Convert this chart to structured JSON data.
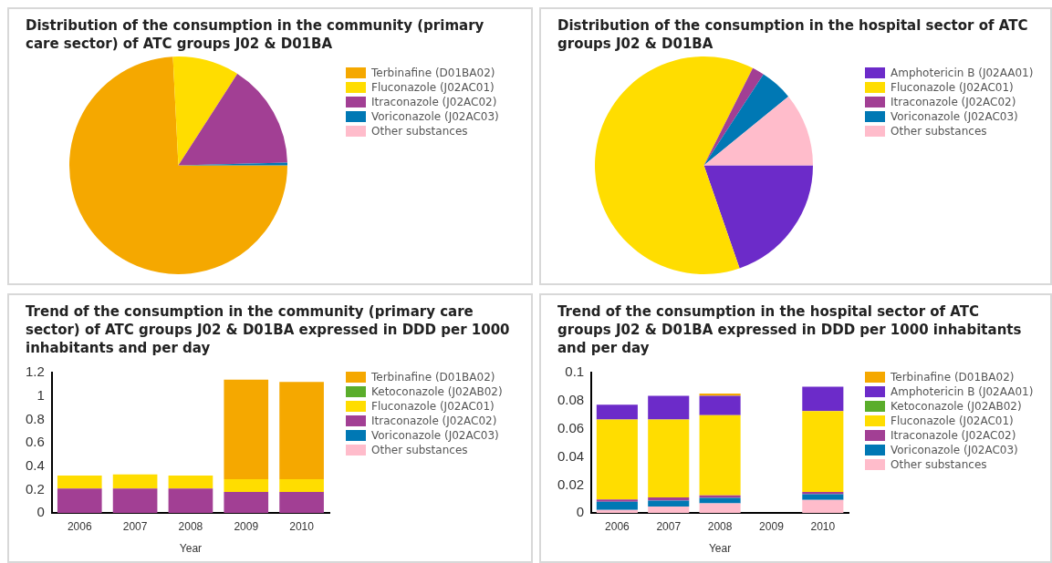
{
  "chart_data": [
    {
      "type": "pie",
      "title": "Distribution of the consumption in the community (primary care sector) of ATC groups J02 & D01BA",
      "categories": [
        "Terbinafine (D01BA02)",
        "Fluconazole (J02AC01)",
        "Itraconazole (J02AC02)",
        "Voriconazole (J02AC03)",
        "Other substances"
      ],
      "values": [
        74.2,
        9.9,
        15.5,
        0.4,
        0
      ],
      "colors": [
        "#f5a800",
        "#ffdd00",
        "#a23f94",
        "#0078b4",
        "#ffbccb"
      ],
      "legend": "right"
    },
    {
      "type": "pie",
      "title": "Distribution of the consumption in the hospital sector of ATC groups J02 & D01BA",
      "categories": [
        "Amphotericin B (J02AA01)",
        "Fluconazole (J02AC01)",
        "Itraconazole (J02AC02)",
        "Voriconazole (J02AC03)",
        "Other substances"
      ],
      "values": [
        19.7,
        62.7,
        1.8,
        4.9,
        10.9
      ],
      "colors": [
        "#6c2bc9",
        "#ffdd00",
        "#a23f94",
        "#0078b4",
        "#ffbccb"
      ],
      "legend": "right"
    },
    {
      "type": "bar",
      "stacked": true,
      "title": "Trend of the consumption in the community (primary care sector) of ATC groups J02 & D01BA expressed in DDD per 1000 inhabitants and per day",
      "xlabel": "Year",
      "categories": [
        "2006",
        "2007",
        "2008",
        "2009",
        "2010"
      ],
      "ylim": [
        0,
        1.2
      ],
      "yticks": [
        0,
        0.2,
        0.4,
        0.6,
        0.8,
        1,
        1.2
      ],
      "grid": false,
      "legend": "right",
      "series": [
        {
          "name": "Other substances",
          "color": "#ffbccb",
          "values": [
            0,
            0,
            0,
            0,
            0
          ]
        },
        {
          "name": "Voriconazole (J02AC03)",
          "color": "#0078b4",
          "values": [
            0,
            0,
            0,
            0,
            0
          ]
        },
        {
          "name": "Itraconazole (J02AC02)",
          "color": "#a23f94",
          "values": [
            0.21,
            0.21,
            0.21,
            0.18,
            0.18
          ]
        },
        {
          "name": "Fluconazole (J02AC01)",
          "color": "#ffdd00",
          "values": [
            0.11,
            0.12,
            0.11,
            0.11,
            0.11
          ]
        },
        {
          "name": "Ketoconazole (J02AB02)",
          "color": "#5aad2b",
          "values": [
            0,
            0,
            0,
            0,
            0
          ]
        },
        {
          "name": "Terbinafine (D01BA02)",
          "color": "#f5a800",
          "values": [
            0,
            0,
            0,
            0.85,
            0.83
          ]
        }
      ]
    },
    {
      "type": "bar",
      "stacked": true,
      "title": "Trend of the consumption in the hospital sector of ATC groups J02 & D01BA expressed in DDD per 1000 inhabitants and per day",
      "xlabel": "Year",
      "categories": [
        "2006",
        "2007",
        "2008",
        "2009",
        "2010"
      ],
      "ylim": [
        0,
        0.1
      ],
      "yticks": [
        0,
        0.02,
        0.04,
        0.06,
        0.08,
        0.1
      ],
      "grid": false,
      "legend": "right",
      "series": [
        {
          "name": "Other substances",
          "color": "#ffbccb",
          "values": [
            0.0023,
            0.0046,
            0.0069,
            null,
            0.0094
          ]
        },
        {
          "name": "Voriconazole (J02AC03)",
          "color": "#0078b4",
          "values": [
            0.0057,
            0.0043,
            0.004,
            null,
            0.004
          ]
        },
        {
          "name": "Itraconazole (J02AC02)",
          "color": "#a23f94",
          "values": [
            0.0017,
            0.0022,
            0.0017,
            null,
            0.0017
          ]
        },
        {
          "name": "Fluconazole (J02AC01)",
          "color": "#ffdd00",
          "values": [
            0.0569,
            0.0555,
            0.0571,
            null,
            0.0575
          ]
        },
        {
          "name": "Ketoconazole (J02AB02)",
          "color": "#5aad2b",
          "values": [
            0,
            0,
            0,
            null,
            0
          ]
        },
        {
          "name": "Amphotericin B (J02AA01)",
          "color": "#6c2bc9",
          "values": [
            0.0105,
            0.0168,
            0.0137,
            null,
            0.0174
          ]
        },
        {
          "name": "Terbinafine (D01BA02)",
          "color": "#f5a800",
          "values": [
            0,
            0,
            0.0017,
            null,
            0
          ]
        }
      ]
    }
  ]
}
